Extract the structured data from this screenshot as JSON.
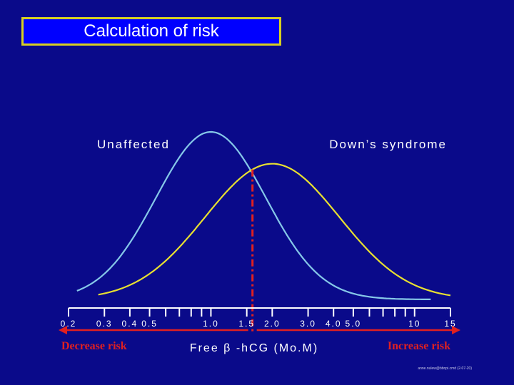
{
  "slide": {
    "title": "Calculation of risk"
  },
  "colors": {
    "background": "#0a0a8a",
    "title_fill": "#0000ff",
    "title_border": "#d8d020",
    "unaffected_curve": "#86c8e8",
    "downs_curve": "#e8e030",
    "cutoff_line": "#e02020",
    "axis": "#ffffff",
    "risk_arrows": "#e02020"
  },
  "chart_data": {
    "type": "line",
    "x_scale": "log",
    "xlabel": "Free β -hCG (Mo.M)",
    "xlim": [
      0.2,
      15
    ],
    "ticks": [
      {
        "value": 0.2,
        "label": "0.2"
      },
      {
        "value": 0.3,
        "label": "0.3"
      },
      {
        "value": 0.4,
        "label": "0.4"
      },
      {
        "value": 0.5,
        "label": "0.5"
      },
      {
        "value": 1.0,
        "label": "1.0"
      },
      {
        "value": 1.5,
        "label": "1.5"
      },
      {
        "value": 2.0,
        "label": "2.0"
      },
      {
        "value": 3.0,
        "label": "3.0"
      },
      {
        "value": 4.0,
        "label": "4.0"
      },
      {
        "value": 5.0,
        "label": "5.0"
      },
      {
        "value": 10,
        "label": "10"
      },
      {
        "value": 15,
        "label": "15"
      }
    ],
    "minor_ticks": [
      0.6,
      0.7,
      0.8,
      0.9,
      6,
      7,
      8,
      9
    ],
    "series": [
      {
        "name": "Unaffected",
        "peak_mom": 1.0,
        "relative_peak_height": 1.0,
        "log_sd": 0.27,
        "range": [
          0.22,
          12
        ]
      },
      {
        "name": "Down’s syndrome",
        "peak_mom": 2.0,
        "relative_peak_height": 0.81,
        "log_sd": 0.33,
        "range": [
          0.28,
          15
        ]
      }
    ],
    "cutoff_mom": 1.6,
    "annotations": {
      "left_arrow": "Decrease risk",
      "right_arrow": "Increase risk",
      "credit": "anne.nulew@bbnpi.cmd (2-07-20)"
    },
    "grid": false
  }
}
